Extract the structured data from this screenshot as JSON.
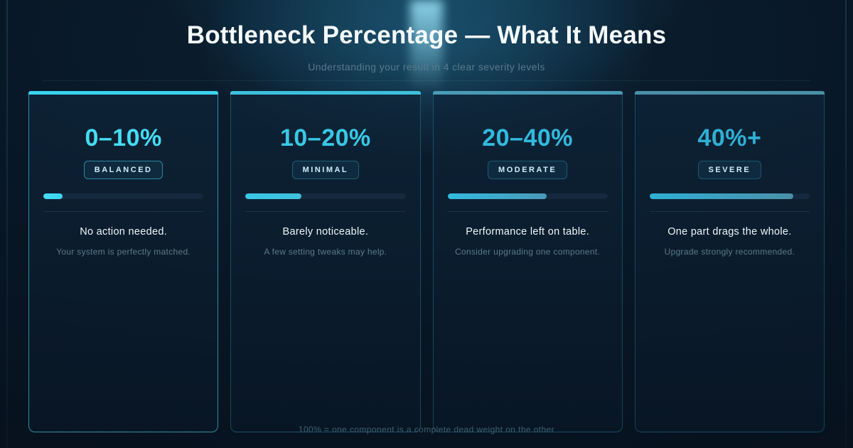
{
  "header": {
    "title": "Bottleneck Percentage — What It Means",
    "subtitle": "Understanding your result in 4 clear severity levels"
  },
  "cards": [
    {
      "range": "0–10%",
      "badge": "BALANCED",
      "progress": 12,
      "headline": "No action needed.",
      "detail": "Your system is perfectly matched.",
      "accent": "#45dcf5",
      "bar_color": "#3bd2ee"
    },
    {
      "range": "10–20%",
      "badge": "MINIMAL",
      "progress": 35,
      "headline": "Barely noticeable.",
      "detail": "A few setting tweaks may help.",
      "accent": "#38c8e6",
      "bar_color": "#3fc0dc"
    },
    {
      "range": "20–40%",
      "badge": "MODERATE",
      "progress": 62,
      "headline": "Performance left on table.",
      "detail": "Consider upgrading one component.",
      "accent": "#32bade",
      "bar_color": "#4a9ab6"
    },
    {
      "range": "40%+",
      "badge": "SEVERE",
      "progress": 90,
      "headline": "One part drags the whole.",
      "detail": "Upgrade strongly recommended.",
      "accent": "#2eb0d4",
      "bar_color": "#4a8fa8"
    }
  ],
  "footer": {
    "note": "100% = one component is a complete dead weight on the other"
  }
}
